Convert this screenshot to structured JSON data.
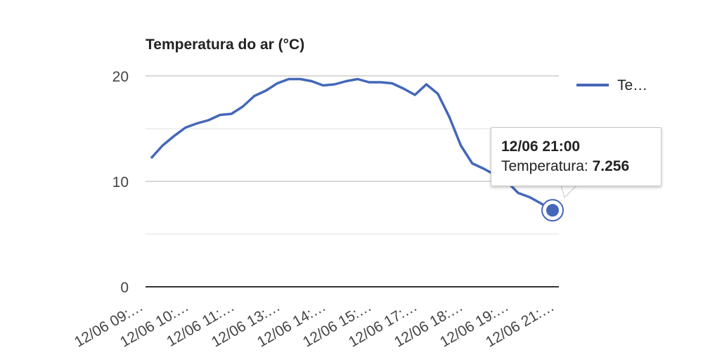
{
  "chart_data": {
    "type": "line",
    "title": "Temperatura do ar (°C)",
    "xlabel": "",
    "ylabel": "",
    "ylim": [
      0,
      20
    ],
    "yticks": [
      "0",
      "10",
      "20"
    ],
    "x_tick_labels": [
      "12/06 09:…",
      "12/06 10:…",
      "12/06 11:…",
      "12/06 13:…",
      "12/06 14:…",
      "12/06 15:…",
      "12/06 17:…",
      "12/06 18:…",
      "12/06 19:…",
      "12/06 21:…"
    ],
    "grid": true,
    "legend_position": "right",
    "series": [
      {
        "name": "Te…",
        "color": "#4467b9",
        "values": [
          12.2,
          13.4,
          14.3,
          15.1,
          15.5,
          15.8,
          16.3,
          16.4,
          17.1,
          18.1,
          18.6,
          19.3,
          19.7,
          19.7,
          19.5,
          19.1,
          19.2,
          19.5,
          19.7,
          19.4,
          19.4,
          19.3,
          18.8,
          18.2,
          19.2,
          18.3,
          16.1,
          13.4,
          11.7,
          11.2,
          10.6,
          10.0,
          8.9,
          8.5,
          7.9,
          7.256
        ]
      }
    ],
    "tooltip": {
      "title": "12/06 21:00",
      "label": "Temperatura:",
      "value": "7.256"
    }
  }
}
